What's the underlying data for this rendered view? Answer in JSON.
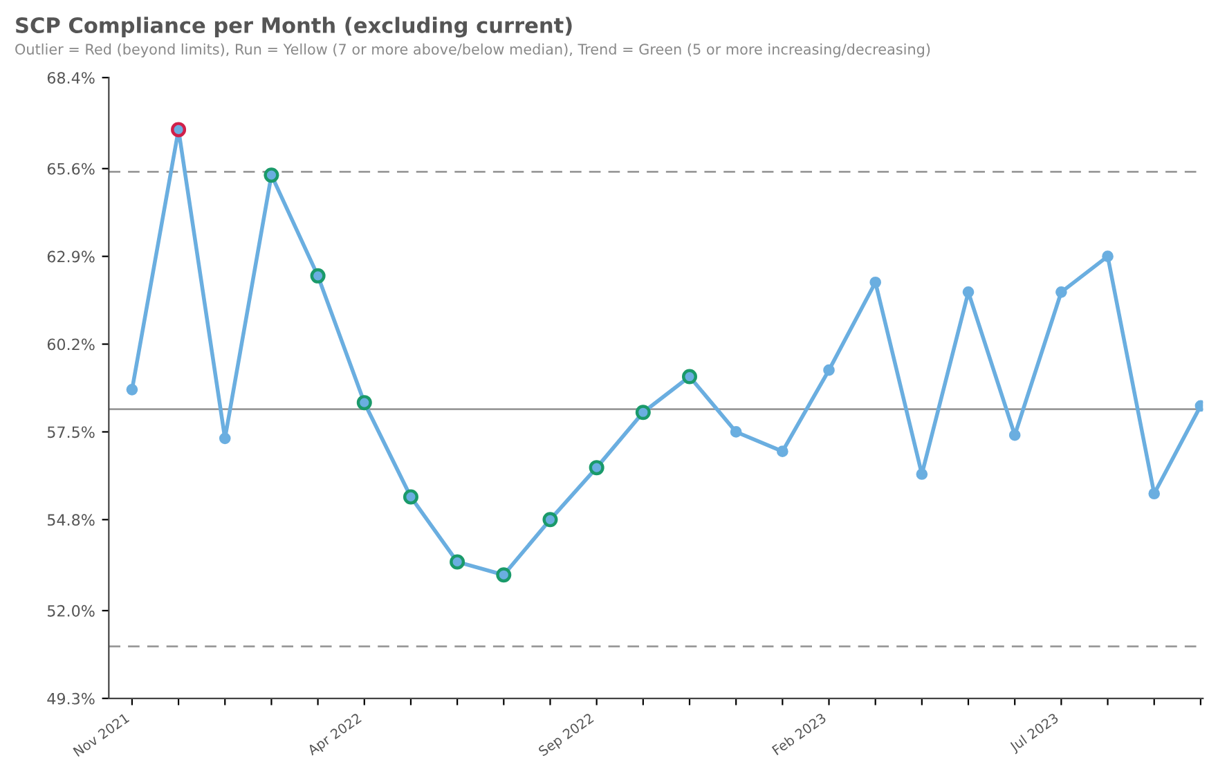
{
  "chart_data": {
    "type": "line",
    "title": "SCP Compliance per Month (excluding current)",
    "subtitle": "Outlier = Red (beyond limits), Run = Yellow (7 or more above/below median), Trend = Green (5 or more increasing/decreasing)",
    "categories": [
      "Nov 2021",
      null,
      null,
      null,
      null,
      "Apr 2022",
      null,
      null,
      null,
      null,
      "Sep 2022",
      null,
      null,
      null,
      null,
      "Feb 2023",
      null,
      null,
      null,
      null,
      "Jul 2023",
      null,
      null,
      null
    ],
    "series": [
      {
        "color": "#6aaee0",
        "marker": "circle",
        "line_style": "solid",
        "values": [
          58.8,
          66.8,
          57.3,
          65.4,
          62.3,
          58.4,
          55.5,
          53.5,
          53.1,
          54.8,
          56.4,
          58.1,
          59.2,
          57.5,
          56.9,
          59.4,
          62.1,
          56.2,
          61.8,
          57.4,
          61.8,
          62.9,
          55.6,
          58.3
        ]
      },
      {
        "type": "scatter",
        "color": "#d0204a",
        "values": [
          null,
          66.8,
          null,
          null,
          null,
          null,
          null,
          null,
          null,
          null,
          null,
          null,
          null,
          null,
          null,
          null,
          null,
          null,
          null,
          null,
          null,
          null,
          null,
          null
        ]
      },
      {
        "type": "scatter",
        "color": "#1a9a6a",
        "values": [
          null,
          null,
          null,
          65.4,
          62.3,
          58.4,
          55.5,
          53.5,
          53.1,
          54.8,
          56.4,
          58.1,
          59.2,
          null,
          null,
          null,
          null,
          null,
          null,
          null,
          null,
          null,
          null,
          null
        ]
      }
    ],
    "ylim": [
      49.3,
      68.4
    ],
    "yticks": [
      {
        "value": 49.3,
        "label": "49.3%"
      },
      {
        "value": 52.0,
        "label": "52.0%"
      },
      {
        "value": 54.8,
        "label": "54.8%"
      },
      {
        "value": 57.5,
        "label": "57.5%"
      },
      {
        "value": 60.2,
        "label": "60.2%"
      },
      {
        "value": 62.9,
        "label": "62.9%"
      },
      {
        "value": 65.6,
        "label": "65.6%"
      },
      {
        "value": 68.4,
        "label": "68.4%"
      }
    ],
    "ref_lines": [
      {
        "axis": "y",
        "value": 65.5,
        "color": "#999999",
        "line_style": "dashed"
      },
      {
        "axis": "y",
        "value": 58.2,
        "color": "#999999",
        "line_style": "solid"
      },
      {
        "axis": "y",
        "value": 50.9,
        "color": "#999999",
        "line_style": "dashed"
      }
    ],
    "grid": false,
    "legend": false
  }
}
